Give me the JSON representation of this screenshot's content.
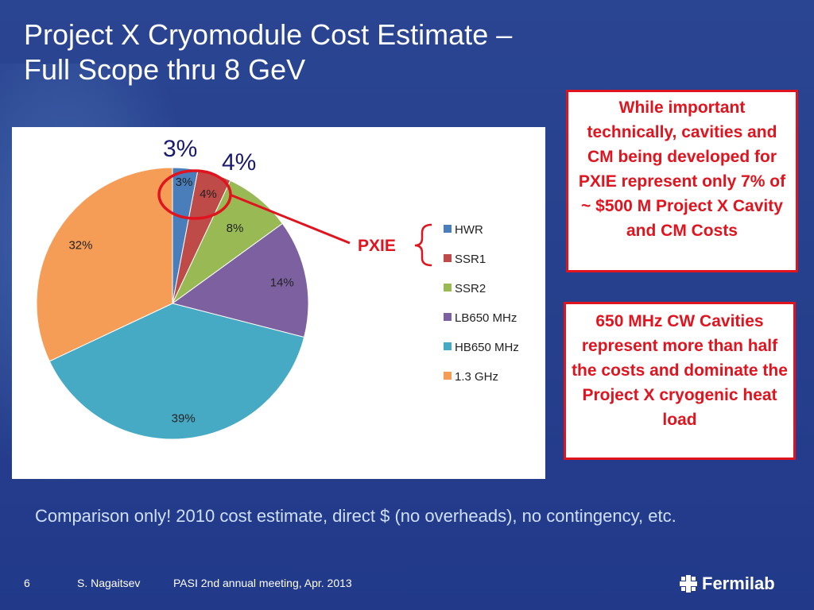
{
  "slide": {
    "title_line1": "Project X Cryomodule Cost Estimate –",
    "title_line2": "Full Scope thru 8 GeV",
    "callout_pxie": "While important technically, cavities and CM being developed for PXIE represent only 7% of ~ $500 M Project X Cavity and CM Costs",
    "callout_650": "650 MHz  CW Cavities represent more than half the costs and dominate the Project X cryogenic heat load",
    "pxie_label": "PXIE",
    "footnote": "Comparison only!  2010 cost estimate, direct $ (no overheads), no contingency, etc.",
    "page_number": "6",
    "author": "S. Nagaitsev",
    "meeting": "PASI 2nd annual meeting, Apr. 2013",
    "logo_text": "Fermilab"
  },
  "chart_data": {
    "type": "pie",
    "categories": [
      "HWR",
      "SSR1",
      "SSR2",
      "LB650 MHz",
      "HB650 MHz",
      "1.3 GHz"
    ],
    "values": [
      3,
      4,
      8,
      14,
      39,
      32
    ],
    "data_labels": [
      "3%",
      "4%",
      "8%",
      "14%",
      "39%",
      "32%"
    ],
    "colors": [
      "#4a7ebb",
      "#be4b48",
      "#98b954",
      "#7d60a0",
      "#46aac5",
      "#f59d56"
    ],
    "legend_position": "right",
    "overlay_labels": [
      "3%",
      "4%"
    ]
  }
}
